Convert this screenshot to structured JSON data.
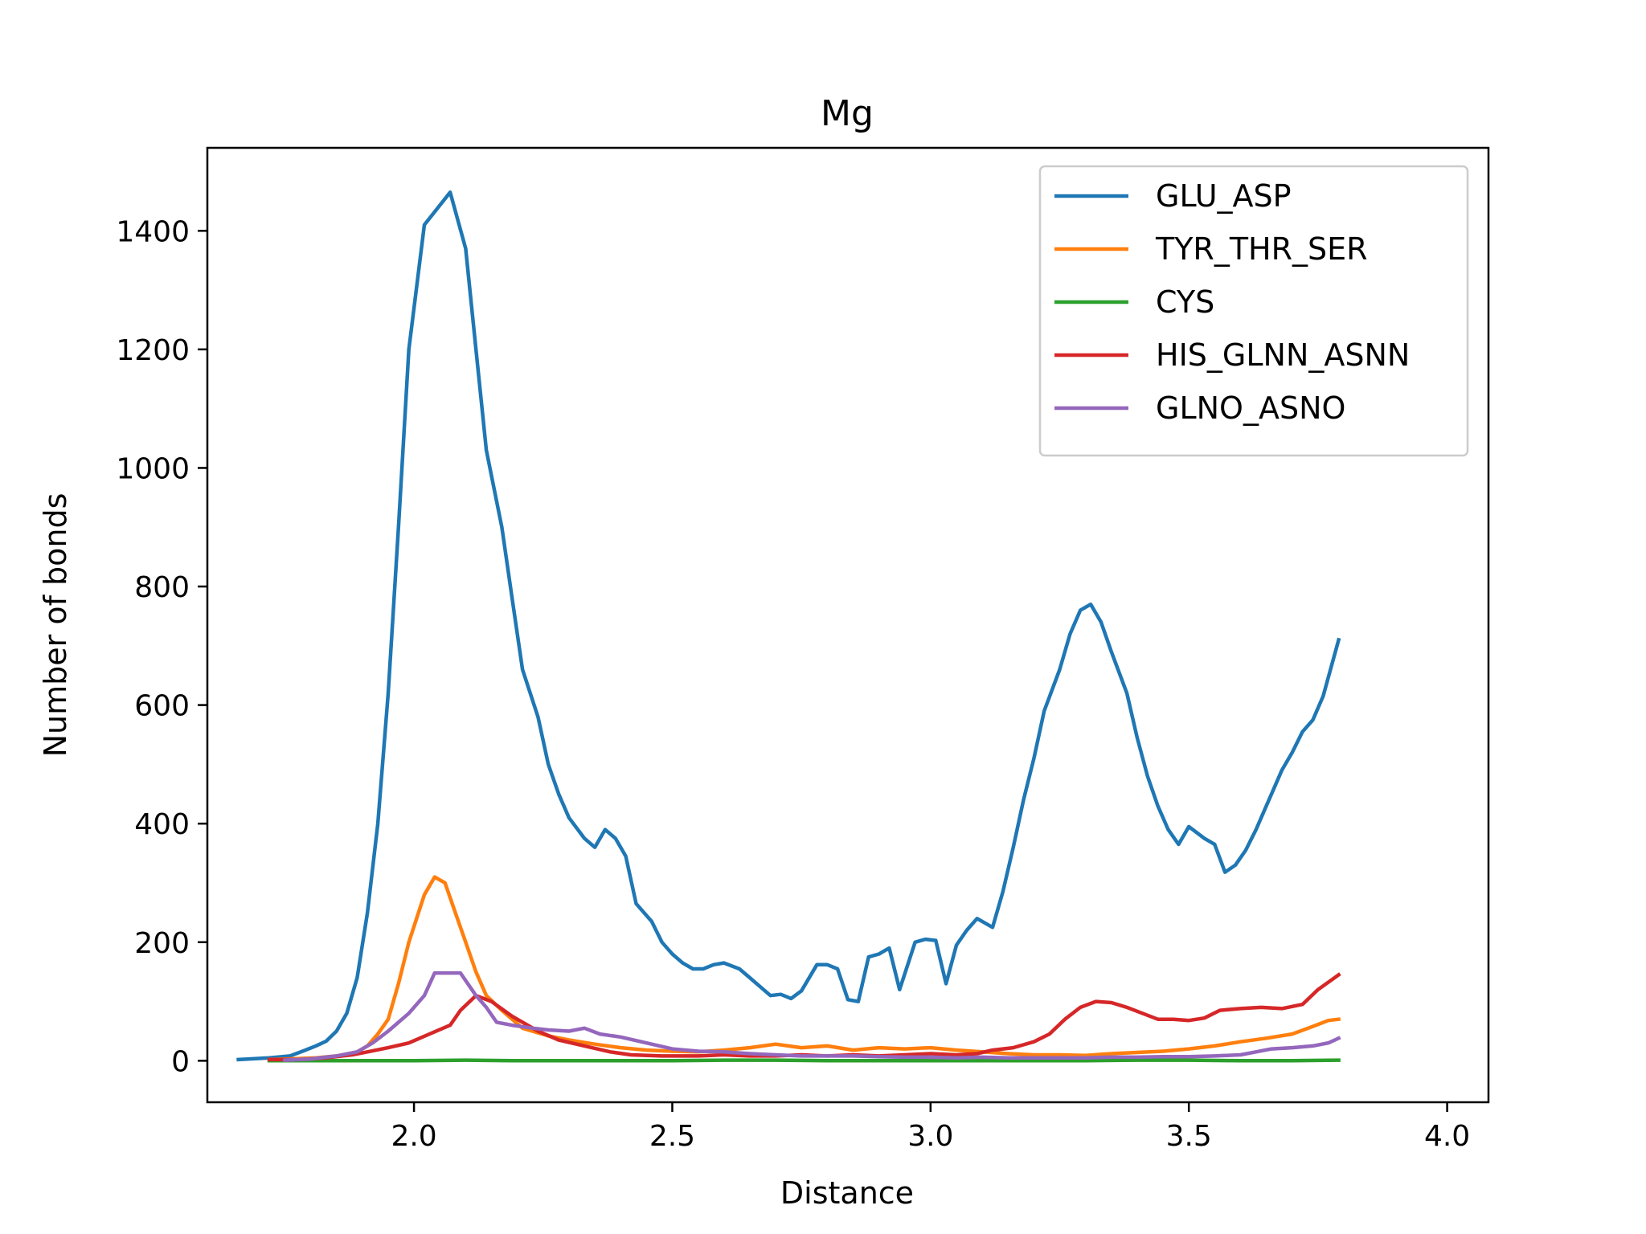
{
  "chart_data": {
    "type": "line",
    "title": "Mg",
    "xlabel": "Distance",
    "ylabel": "Number of bonds",
    "xlim": [
      1.6,
      4.08
    ],
    "ylim": [
      -70,
      1540
    ],
    "xticks": [
      2.0,
      2.5,
      3.0,
      3.5,
      4.0
    ],
    "xtick_labels": [
      "2.0",
      "2.5",
      "3.0",
      "3.5",
      "4.0"
    ],
    "yticks": [
      0,
      200,
      400,
      600,
      800,
      1000,
      1200,
      1400
    ],
    "ytick_labels": [
      "0",
      "200",
      "400",
      "600",
      "800",
      "1000",
      "1200",
      "1400"
    ],
    "grid": false,
    "legend_position": "top-right",
    "series": [
      {
        "name": "GLU_ASP",
        "color": "#1f77b4",
        "points": [
          [
            1.66,
            2
          ],
          [
            1.72,
            5
          ],
          [
            1.76,
            8
          ],
          [
            1.79,
            18
          ],
          [
            1.81,
            25
          ],
          [
            1.83,
            33
          ],
          [
            1.85,
            50
          ],
          [
            1.87,
            80
          ],
          [
            1.89,
            140
          ],
          [
            1.91,
            250
          ],
          [
            1.93,
            400
          ],
          [
            1.95,
            620
          ],
          [
            1.97,
            900
          ],
          [
            1.99,
            1200
          ],
          [
            2.02,
            1410
          ],
          [
            2.07,
            1465
          ],
          [
            2.1,
            1370
          ],
          [
            2.12,
            1200
          ],
          [
            2.14,
            1030
          ],
          [
            2.17,
            900
          ],
          [
            2.19,
            780
          ],
          [
            2.21,
            660
          ],
          [
            2.24,
            580
          ],
          [
            2.26,
            500
          ],
          [
            2.28,
            450
          ],
          [
            2.3,
            410
          ],
          [
            2.33,
            375
          ],
          [
            2.35,
            360
          ],
          [
            2.37,
            390
          ],
          [
            2.39,
            375
          ],
          [
            2.41,
            345
          ],
          [
            2.43,
            265
          ],
          [
            2.46,
            235
          ],
          [
            2.48,
            200
          ],
          [
            2.5,
            180
          ],
          [
            2.52,
            165
          ],
          [
            2.54,
            155
          ],
          [
            2.56,
            155
          ],
          [
            2.58,
            162
          ],
          [
            2.6,
            165
          ],
          [
            2.63,
            155
          ],
          [
            2.65,
            140
          ],
          [
            2.67,
            125
          ],
          [
            2.69,
            110
          ],
          [
            2.71,
            112
          ],
          [
            2.73,
            105
          ],
          [
            2.75,
            118
          ],
          [
            2.78,
            162
          ],
          [
            2.8,
            162
          ],
          [
            2.82,
            155
          ],
          [
            2.84,
            103
          ],
          [
            2.86,
            100
          ],
          [
            2.88,
            175
          ],
          [
            2.9,
            180
          ],
          [
            2.92,
            190
          ],
          [
            2.94,
            120
          ],
          [
            2.97,
            200
          ],
          [
            2.99,
            205
          ],
          [
            3.01,
            203
          ],
          [
            3.03,
            130
          ],
          [
            3.05,
            195
          ],
          [
            3.07,
            220
          ],
          [
            3.09,
            240
          ],
          [
            3.12,
            225
          ],
          [
            3.14,
            285
          ],
          [
            3.16,
            360
          ],
          [
            3.18,
            440
          ],
          [
            3.2,
            510
          ],
          [
            3.22,
            590
          ],
          [
            3.25,
            660
          ],
          [
            3.27,
            720
          ],
          [
            3.29,
            760
          ],
          [
            3.31,
            770
          ],
          [
            3.33,
            740
          ],
          [
            3.35,
            690
          ],
          [
            3.38,
            620
          ],
          [
            3.4,
            545
          ],
          [
            3.42,
            480
          ],
          [
            3.44,
            430
          ],
          [
            3.46,
            390
          ],
          [
            3.48,
            365
          ],
          [
            3.5,
            395
          ],
          [
            3.53,
            375
          ],
          [
            3.55,
            365
          ],
          [
            3.57,
            318
          ],
          [
            3.59,
            330
          ],
          [
            3.61,
            355
          ],
          [
            3.63,
            390
          ],
          [
            3.65,
            430
          ],
          [
            3.68,
            490
          ],
          [
            3.7,
            520
          ],
          [
            3.72,
            555
          ],
          [
            3.74,
            575
          ],
          [
            3.76,
            615
          ],
          [
            3.79,
            710
          ]
        ]
      },
      {
        "name": "TYR_THR_SER",
        "color": "#ff7f0e",
        "points": [
          [
            1.72,
            2
          ],
          [
            1.76,
            3
          ],
          [
            1.81,
            5
          ],
          [
            1.85,
            8
          ],
          [
            1.89,
            15
          ],
          [
            1.91,
            25
          ],
          [
            1.93,
            45
          ],
          [
            1.95,
            70
          ],
          [
            1.97,
            130
          ],
          [
            1.99,
            200
          ],
          [
            2.02,
            280
          ],
          [
            2.04,
            310
          ],
          [
            2.06,
            300
          ],
          [
            2.08,
            250
          ],
          [
            2.1,
            200
          ],
          [
            2.12,
            150
          ],
          [
            2.14,
            110
          ],
          [
            2.17,
            85
          ],
          [
            2.19,
            70
          ],
          [
            2.21,
            55
          ],
          [
            2.26,
            42
          ],
          [
            2.3,
            35
          ],
          [
            2.35,
            28
          ],
          [
            2.4,
            22
          ],
          [
            2.45,
            18
          ],
          [
            2.5,
            16
          ],
          [
            2.55,
            15
          ],
          [
            2.6,
            18
          ],
          [
            2.65,
            22
          ],
          [
            2.7,
            28
          ],
          [
            2.75,
            22
          ],
          [
            2.8,
            25
          ],
          [
            2.85,
            18
          ],
          [
            2.9,
            22
          ],
          [
            2.95,
            20
          ],
          [
            3.0,
            22
          ],
          [
            3.05,
            18
          ],
          [
            3.1,
            15
          ],
          [
            3.15,
            12
          ],
          [
            3.2,
            10
          ],
          [
            3.25,
            10
          ],
          [
            3.3,
            9
          ],
          [
            3.35,
            12
          ],
          [
            3.4,
            14
          ],
          [
            3.45,
            16
          ],
          [
            3.5,
            20
          ],
          [
            3.55,
            25
          ],
          [
            3.6,
            32
          ],
          [
            3.65,
            38
          ],
          [
            3.7,
            45
          ],
          [
            3.74,
            58
          ],
          [
            3.77,
            68
          ],
          [
            3.79,
            70
          ]
        ]
      },
      {
        "name": "CYS",
        "color": "#2ca02c",
        "points": [
          [
            1.72,
            0
          ],
          [
            1.8,
            0
          ],
          [
            1.9,
            0
          ],
          [
            2.0,
            0
          ],
          [
            2.1,
            1
          ],
          [
            2.2,
            0
          ],
          [
            2.3,
            0
          ],
          [
            2.4,
            0
          ],
          [
            2.5,
            0
          ],
          [
            2.6,
            1
          ],
          [
            2.7,
            1
          ],
          [
            2.8,
            0
          ],
          [
            2.9,
            0
          ],
          [
            3.0,
            0
          ],
          [
            3.1,
            0
          ],
          [
            3.2,
            0
          ],
          [
            3.3,
            0
          ],
          [
            3.4,
            1
          ],
          [
            3.5,
            1
          ],
          [
            3.6,
            0
          ],
          [
            3.7,
            0
          ],
          [
            3.79,
            1
          ]
        ]
      },
      {
        "name": "HIS_GLNN_ASNN",
        "color": "#d62728",
        "points": [
          [
            1.72,
            2
          ],
          [
            1.78,
            2
          ],
          [
            1.83,
            5
          ],
          [
            1.88,
            10
          ],
          [
            1.91,
            15
          ],
          [
            1.95,
            22
          ],
          [
            1.99,
            30
          ],
          [
            2.03,
            45
          ],
          [
            2.07,
            60
          ],
          [
            2.09,
            85
          ],
          [
            2.12,
            110
          ],
          [
            2.15,
            100
          ],
          [
            2.19,
            75
          ],
          [
            2.24,
            50
          ],
          [
            2.28,
            35
          ],
          [
            2.33,
            25
          ],
          [
            2.38,
            15
          ],
          [
            2.42,
            10
          ],
          [
            2.48,
            8
          ],
          [
            2.55,
            8
          ],
          [
            2.6,
            10
          ],
          [
            2.65,
            8
          ],
          [
            2.7,
            8
          ],
          [
            2.75,
            10
          ],
          [
            2.8,
            8
          ],
          [
            2.85,
            10
          ],
          [
            2.9,
            8
          ],
          [
            2.95,
            10
          ],
          [
            3.0,
            12
          ],
          [
            3.05,
            10
          ],
          [
            3.09,
            12
          ],
          [
            3.12,
            18
          ],
          [
            3.16,
            22
          ],
          [
            3.2,
            32
          ],
          [
            3.23,
            45
          ],
          [
            3.26,
            70
          ],
          [
            3.29,
            90
          ],
          [
            3.32,
            100
          ],
          [
            3.35,
            98
          ],
          [
            3.38,
            90
          ],
          [
            3.41,
            80
          ],
          [
            3.44,
            70
          ],
          [
            3.47,
            70
          ],
          [
            3.5,
            68
          ],
          [
            3.53,
            72
          ],
          [
            3.56,
            85
          ],
          [
            3.6,
            88
          ],
          [
            3.64,
            90
          ],
          [
            3.68,
            88
          ],
          [
            3.72,
            95
          ],
          [
            3.75,
            120
          ],
          [
            3.79,
            145
          ]
        ]
      },
      {
        "name": "GLNO_ASNO",
        "color": "#9467bd",
        "points": [
          [
            1.75,
            1
          ],
          [
            1.8,
            3
          ],
          [
            1.85,
            8
          ],
          [
            1.89,
            15
          ],
          [
            1.92,
            30
          ],
          [
            1.95,
            50
          ],
          [
            1.99,
            80
          ],
          [
            2.02,
            110
          ],
          [
            2.04,
            148
          ],
          [
            2.07,
            148
          ],
          [
            2.09,
            148
          ],
          [
            2.12,
            110
          ],
          [
            2.14,
            90
          ],
          [
            2.16,
            65
          ],
          [
            2.19,
            60
          ],
          [
            2.23,
            55
          ],
          [
            2.26,
            52
          ],
          [
            2.3,
            50
          ],
          [
            2.33,
            55
          ],
          [
            2.36,
            45
          ],
          [
            2.4,
            40
          ],
          [
            2.45,
            30
          ],
          [
            2.5,
            20
          ],
          [
            2.55,
            16
          ],
          [
            2.6,
            15
          ],
          [
            2.65,
            12
          ],
          [
            2.7,
            10
          ],
          [
            2.75,
            8
          ],
          [
            2.8,
            8
          ],
          [
            2.85,
            8
          ],
          [
            2.9,
            7
          ],
          [
            2.95,
            6
          ],
          [
            3.0,
            6
          ],
          [
            3.05,
            5
          ],
          [
            3.1,
            6
          ],
          [
            3.15,
            5
          ],
          [
            3.2,
            5
          ],
          [
            3.25,
            5
          ],
          [
            3.3,
            5
          ],
          [
            3.35,
            6
          ],
          [
            3.4,
            6
          ],
          [
            3.45,
            7
          ],
          [
            3.5,
            7
          ],
          [
            3.55,
            8
          ],
          [
            3.6,
            10
          ],
          [
            3.63,
            15
          ],
          [
            3.66,
            20
          ],
          [
            3.7,
            22
          ],
          [
            3.74,
            25
          ],
          [
            3.77,
            30
          ],
          [
            3.79,
            38
          ]
        ]
      }
    ]
  }
}
